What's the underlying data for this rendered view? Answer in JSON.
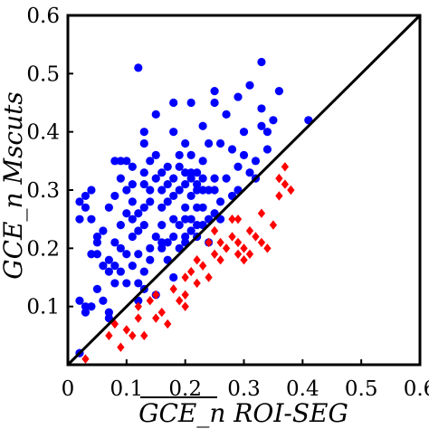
{
  "chart_data": {
    "type": "scatter",
    "xlim": [
      0,
      0.6
    ],
    "ylim": [
      0,
      0.6
    ],
    "x_ticks": [
      "0",
      "0.1",
      "0.2",
      "0.3",
      "0.4",
      "0.5",
      "0.6"
    ],
    "y_ticks": [
      "0.1",
      "0.2",
      "0.3",
      "0.4",
      "0.5",
      "0.6"
    ],
    "xlabel": "GCE_n ROI-SEG",
    "ylabel": "GCE_n Mscuts",
    "reference_line": "y = x",
    "grid": false,
    "series": [
      {
        "color": "#0000ff",
        "marker": "circle",
        "points": [
          [
            0.02,
            0.02
          ],
          [
            0.02,
            0.28
          ],
          [
            0.02,
            0.25
          ],
          [
            0.02,
            0.11
          ],
          [
            0.03,
            0.1
          ],
          [
            0.03,
            0.27
          ],
          [
            0.03,
            0.29
          ],
          [
            0.04,
            0.3
          ],
          [
            0.04,
            0.25
          ],
          [
            0.04,
            0.19
          ],
          [
            0.04,
            0.1
          ],
          [
            0.05,
            0.22
          ],
          [
            0.05,
            0.19
          ],
          [
            0.05,
            0.13
          ],
          [
            0.06,
            0.23
          ],
          [
            0.06,
            0.17
          ],
          [
            0.06,
            0.11
          ],
          [
            0.07,
            0.16
          ],
          [
            0.07,
            0.18
          ],
          [
            0.07,
            0.27
          ],
          [
            0.07,
            0.09
          ],
          [
            0.07,
            0.08
          ],
          [
            0.08,
            0.35
          ],
          [
            0.08,
            0.29
          ],
          [
            0.08,
            0.21
          ],
          [
            0.08,
            0.17
          ],
          [
            0.08,
            0.14
          ],
          [
            0.09,
            0.32
          ],
          [
            0.09,
            0.24
          ],
          [
            0.09,
            0.2
          ],
          [
            0.09,
            0.16
          ],
          [
            0.09,
            0.35
          ],
          [
            0.1,
            0.35
          ],
          [
            0.1,
            0.3
          ],
          [
            0.1,
            0.26
          ],
          [
            0.1,
            0.19
          ],
          [
            0.1,
            0.14
          ],
          [
            0.11,
            0.34
          ],
          [
            0.11,
            0.31
          ],
          [
            0.11,
            0.28
          ],
          [
            0.11,
            0.25
          ],
          [
            0.11,
            0.22
          ],
          [
            0.11,
            0.17
          ],
          [
            0.12,
            0.51
          ],
          [
            0.12,
            0.26
          ],
          [
            0.12,
            0.23
          ],
          [
            0.12,
            0.19
          ],
          [
            0.12,
            0.14
          ],
          [
            0.12,
            0.11
          ],
          [
            0.13,
            0.4
          ],
          [
            0.13,
            0.38
          ],
          [
            0.13,
            0.33
          ],
          [
            0.13,
            0.31
          ],
          [
            0.13,
            0.27
          ],
          [
            0.13,
            0.24
          ],
          [
            0.13,
            0.16
          ],
          [
            0.13,
            0.13
          ],
          [
            0.14,
            0.35
          ],
          [
            0.14,
            0.3
          ],
          [
            0.14,
            0.28
          ],
          [
            0.14,
            0.2
          ],
          [
            0.14,
            0.18
          ],
          [
            0.15,
            0.43
          ],
          [
            0.15,
            0.36
          ],
          [
            0.15,
            0.32
          ],
          [
            0.15,
            0.22
          ],
          [
            0.15,
            0.12
          ],
          [
            0.16,
            0.33
          ],
          [
            0.16,
            0.3
          ],
          [
            0.16,
            0.27
          ],
          [
            0.16,
            0.24
          ],
          [
            0.16,
            0.21
          ],
          [
            0.16,
            0.2
          ],
          [
            0.17,
            0.34
          ],
          [
            0.17,
            0.31
          ],
          [
            0.17,
            0.28
          ],
          [
            0.17,
            0.21
          ],
          [
            0.17,
            0.18
          ],
          [
            0.18,
            0.45
          ],
          [
            0.18,
            0.4
          ],
          [
            0.18,
            0.32
          ],
          [
            0.18,
            0.29
          ],
          [
            0.18,
            0.25
          ],
          [
            0.18,
            0.22
          ],
          [
            0.18,
            0.15
          ],
          [
            0.19,
            0.36
          ],
          [
            0.19,
            0.34
          ],
          [
            0.19,
            0.3
          ],
          [
            0.19,
            0.24
          ],
          [
            0.19,
            0.2
          ],
          [
            0.2,
            0.38
          ],
          [
            0.2,
            0.33
          ],
          [
            0.2,
            0.31
          ],
          [
            0.2,
            0.27
          ],
          [
            0.2,
            0.25
          ],
          [
            0.2,
            0.22
          ],
          [
            0.2,
            0.21
          ],
          [
            0.21,
            0.45
          ],
          [
            0.21,
            0.36
          ],
          [
            0.21,
            0.33
          ],
          [
            0.21,
            0.32
          ],
          [
            0.21,
            0.29
          ],
          [
            0.21,
            0.25
          ],
          [
            0.21,
            0.23
          ],
          [
            0.22,
            0.33
          ],
          [
            0.22,
            0.31
          ],
          [
            0.22,
            0.3
          ],
          [
            0.22,
            0.27
          ],
          [
            0.22,
            0.24
          ],
          [
            0.22,
            0.22
          ],
          [
            0.23,
            0.41
          ],
          [
            0.23,
            0.35
          ],
          [
            0.23,
            0.32
          ],
          [
            0.23,
            0.3
          ],
          [
            0.23,
            0.27
          ],
          [
            0.23,
            0.24
          ],
          [
            0.24,
            0.38
          ],
          [
            0.24,
            0.3
          ],
          [
            0.24,
            0.25
          ],
          [
            0.24,
            0.21
          ],
          [
            0.25,
            0.47
          ],
          [
            0.25,
            0.45
          ],
          [
            0.25,
            0.32
          ],
          [
            0.25,
            0.3
          ],
          [
            0.25,
            0.26
          ],
          [
            0.26,
            0.38
          ],
          [
            0.26,
            0.28
          ],
          [
            0.26,
            0.25
          ],
          [
            0.27,
            0.43
          ],
          [
            0.27,
            0.32
          ],
          [
            0.28,
            0.37
          ],
          [
            0.28,
            0.29
          ],
          [
            0.29,
            0.46
          ],
          [
            0.29,
            0.34
          ],
          [
            0.29,
            0.3
          ],
          [
            0.3,
            0.4
          ],
          [
            0.3,
            0.36
          ],
          [
            0.31,
            0.48
          ],
          [
            0.31,
            0.33
          ],
          [
            0.32,
            0.35
          ],
          [
            0.32,
            0.32
          ],
          [
            0.33,
            0.52
          ],
          [
            0.33,
            0.44
          ],
          [
            0.33,
            0.41
          ],
          [
            0.34,
            0.4
          ],
          [
            0.34,
            0.37
          ],
          [
            0.35,
            0.42
          ],
          [
            0.36,
            0.47
          ],
          [
            0.41,
            0.42
          ],
          [
            0.03,
            0.09
          ],
          [
            0.05,
            0.21
          ]
        ]
      },
      {
        "color": "#ff0000",
        "marker": "diamond",
        "points": [
          [
            0.03,
            0.01
          ],
          [
            0.07,
            0.05
          ],
          [
            0.08,
            0.07
          ],
          [
            0.09,
            0.03
          ],
          [
            0.1,
            0.06
          ],
          [
            0.11,
            0.05
          ],
          [
            0.12,
            0.08
          ],
          [
            0.12,
            0.1
          ],
          [
            0.13,
            0.05
          ],
          [
            0.14,
            0.11
          ],
          [
            0.15,
            0.12
          ],
          [
            0.16,
            0.09
          ],
          [
            0.17,
            0.07
          ],
          [
            0.18,
            0.13
          ],
          [
            0.19,
            0.11
          ],
          [
            0.2,
            0.15
          ],
          [
            0.2,
            0.12
          ],
          [
            0.21,
            0.16
          ],
          [
            0.22,
            0.14
          ],
          [
            0.22,
            0.18
          ],
          [
            0.23,
            0.17
          ],
          [
            0.24,
            0.21
          ],
          [
            0.25,
            0.19
          ],
          [
            0.25,
            0.23
          ],
          [
            0.26,
            0.21
          ],
          [
            0.26,
            0.18
          ],
          [
            0.27,
            0.2
          ],
          [
            0.28,
            0.25
          ],
          [
            0.28,
            0.22
          ],
          [
            0.29,
            0.19
          ],
          [
            0.29,
            0.21
          ],
          [
            0.29,
            0.25
          ],
          [
            0.3,
            0.18
          ],
          [
            0.3,
            0.2
          ],
          [
            0.31,
            0.23
          ],
          [
            0.31,
            0.19
          ],
          [
            0.32,
            0.22
          ],
          [
            0.33,
            0.26
          ],
          [
            0.33,
            0.21
          ],
          [
            0.34,
            0.2
          ],
          [
            0.35,
            0.24
          ],
          [
            0.36,
            0.29
          ],
          [
            0.36,
            0.32
          ],
          [
            0.37,
            0.31
          ],
          [
            0.37,
            0.34
          ],
          [
            0.38,
            0.3
          ],
          [
            0.24,
            0.15
          ],
          [
            0.2,
            0.1
          ],
          [
            0.15,
            0.08
          ]
        ]
      }
    ]
  }
}
